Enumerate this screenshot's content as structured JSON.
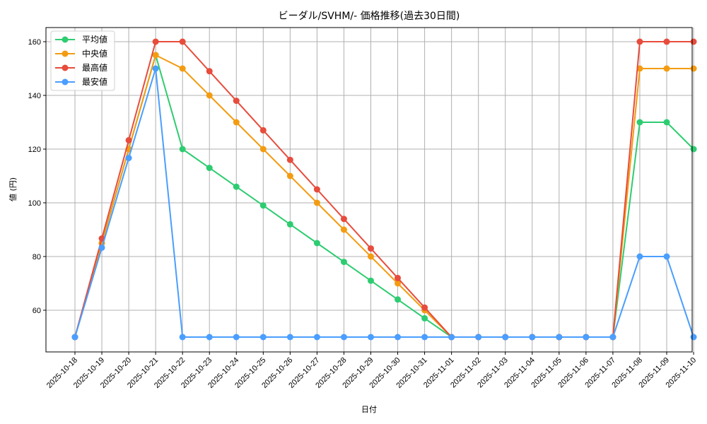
{
  "chart_data": {
    "type": "line",
    "title": "ビーダル/SVHM/- 価格推移(過去30日間)",
    "xlabel": "日付",
    "ylabel": "値 (円)",
    "ylim": [
      45,
      166
    ],
    "yticks": [
      60,
      80,
      100,
      120,
      140,
      160
    ],
    "grid": true,
    "legend_position": "upper left",
    "categories": [
      "2025-10-18",
      "2025-10-19",
      "2025-10-20",
      "2025-10-21",
      "2025-10-22",
      "2025-10-23",
      "2025-10-24",
      "2025-10-25",
      "2025-10-26",
      "2025-10-27",
      "2025-10-28",
      "2025-10-29",
      "2025-10-30",
      "2025-10-31",
      "2025-11-01",
      "2025-11-02",
      "2025-11-03",
      "2025-11-04",
      "2025-11-05",
      "2025-11-06",
      "2025-11-07",
      "2025-11-08",
      "2025-11-09",
      "2025-11-10"
    ],
    "series": [
      {
        "name": "平均値",
        "color": "#2ecc71",
        "values": [
          50,
          85,
          120,
          155,
          120,
          113,
          106,
          99,
          92,
          85,
          78,
          71,
          64,
          57,
          50,
          50,
          50,
          50,
          50,
          50,
          50,
          130,
          130,
          120
        ]
      },
      {
        "name": "中央値",
        "color": "#f39c12",
        "values": [
          50,
          85,
          120,
          155,
          150,
          140,
          130,
          120,
          110,
          100,
          90,
          80,
          70,
          60,
          50,
          50,
          50,
          50,
          50,
          50,
          50,
          150,
          150,
          150
        ]
      },
      {
        "name": "最高値",
        "color": "#e74c3c",
        "values": [
          50,
          86.7,
          123.3,
          160,
          160,
          149,
          138,
          127,
          116,
          105,
          94,
          83,
          72,
          61,
          50,
          50,
          50,
          50,
          50,
          50,
          50,
          160,
          160,
          160
        ]
      },
      {
        "name": "最安値",
        "color": "#4a9eff",
        "values": [
          50,
          83.3,
          116.7,
          150,
          50,
          50,
          50,
          50,
          50,
          50,
          50,
          50,
          50,
          50,
          50,
          50,
          50,
          50,
          50,
          50,
          50,
          80,
          80,
          50
        ]
      }
    ]
  },
  "colors": {
    "grid": "#b0b0b0",
    "axis": "#000000",
    "legend_border": "#d0d0d0"
  }
}
